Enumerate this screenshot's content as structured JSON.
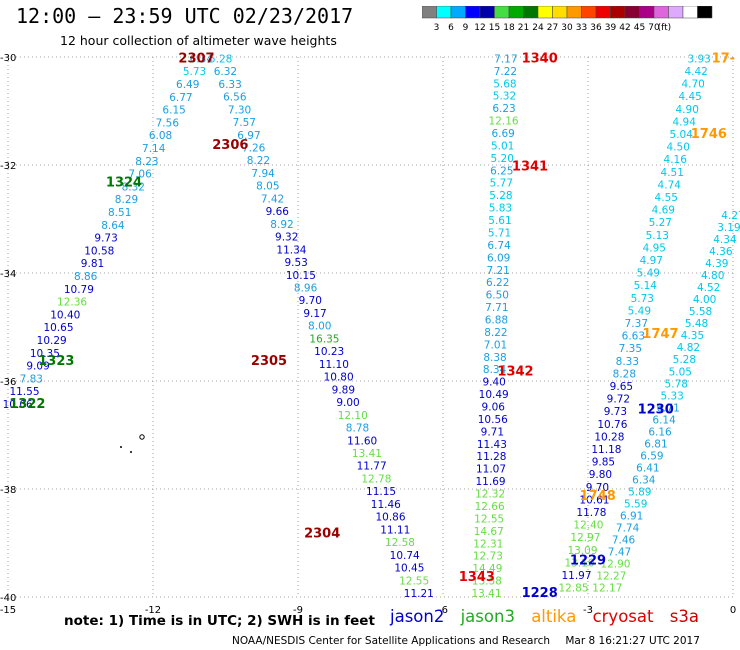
{
  "title": "12:00 – 23:59 UTC 02/23/2017",
  "subtitle": "12 hour collection of altimeter wave heights",
  "colorbar": {
    "colors": [
      "#808080",
      "#00ffff",
      "#00aaff",
      "#0000ff",
      "#0000aa",
      "#44dd44",
      "#00aa00",
      "#007700",
      "#ffff00",
      "#ffdd00",
      "#ff9900",
      "#ff4400",
      "#ee0000",
      "#aa0000",
      "#880033",
      "#aa0088",
      "#dd66dd",
      "#ddaaff",
      "#ffffff",
      "#000000"
    ],
    "labels": [
      "3",
      "6",
      "9",
      "12",
      "15",
      "18",
      "21",
      "24",
      "27",
      "30",
      "33",
      "36",
      "39",
      "42",
      "45",
      "70",
      "(ft)"
    ]
  },
  "axes": {
    "x_ticks": [
      "-15",
      "-12",
      "-9",
      "-6",
      "-3",
      "0"
    ],
    "y_ticks": [
      "-30",
      "-32",
      "-34",
      "-36",
      "-38",
      "-40"
    ]
  },
  "note": "note: 1) Time is in UTC; 2) SWH is in feet",
  "legend": [
    {
      "name": "jason2",
      "color": "#0000cc"
    },
    {
      "name": "jason3",
      "color": "#22aa22"
    },
    {
      "name": "altika",
      "color": "#ff9900"
    },
    {
      "name": "cryosat",
      "color": "#dd0000"
    },
    {
      "name": "s3a",
      "color": "#cc0000"
    }
  ],
  "footer": {
    "credit": "NOAA/NESDIS Center for Satellite Applications and Research",
    "timestamp": "Mar  8 16:21:27 UTC 2017"
  },
  "pass_labels": [
    {
      "text": "2307",
      "lon": -11.1,
      "lat": -30.1,
      "color": "#990000"
    },
    {
      "text": "2306",
      "lon": -10.4,
      "lat": -31.7,
      "color": "#990000"
    },
    {
      "text": "1324",
      "lon": -12.6,
      "lat": -32.4,
      "color": "#007700"
    },
    {
      "text": "2305",
      "lon": -9.6,
      "lat": -35.7,
      "color": "#990000"
    },
    {
      "text": "1323",
      "lon": -14.0,
      "lat": -35.7,
      "color": "#007700"
    },
    {
      "text": "1322",
      "lon": -14.6,
      "lat": -36.5,
      "color": "#007700"
    },
    {
      "text": "2304",
      "lon": -8.5,
      "lat": -38.9,
      "color": "#990000"
    },
    {
      "text": "1340",
      "lon": -4.0,
      "lat": -30.1,
      "color": "#dd0000"
    },
    {
      "text": "1341",
      "lon": -4.2,
      "lat": -32.1,
      "color": "#dd0000"
    },
    {
      "text": "1342",
      "lon": -4.5,
      "lat": -35.9,
      "color": "#dd0000"
    },
    {
      "text": "1343",
      "lon": -5.3,
      "lat": -39.7,
      "color": "#dd0000"
    },
    {
      "text": "1746",
      "lon": -0.5,
      "lat": -31.5,
      "color": "#ff9900"
    },
    {
      "text": "1747",
      "lon": -1.5,
      "lat": -35.2,
      "color": "#ff9900"
    },
    {
      "text": "1748",
      "lon": -2.8,
      "lat": -38.2,
      "color": "#ff9900"
    },
    {
      "text": "1230",
      "lon": -1.6,
      "lat": -36.6,
      "color": "#0000cc"
    },
    {
      "text": "1229",
      "lon": -3.0,
      "lat": -39.4,
      "color": "#0000cc"
    },
    {
      "text": "1228",
      "lon": -4.0,
      "lat": -40.0,
      "color": "#0000cc"
    },
    {
      "text": "17-",
      "lon": -0.2,
      "lat": -30.1,
      "color": "#ff9900"
    }
  ],
  "tracks": [
    {
      "name": "pass-2307",
      "start": [
        -10.6,
        -30.1
      ],
      "end": [
        -6.5,
        -40.0
      ],
      "values": [
        "5.28",
        "6.32",
        "6.33",
        "6.56",
        "7.30",
        "7.57",
        "6.97",
        "7.26",
        "8.22",
        "7.94",
        "8.05",
        "7.42",
        "9.66",
        "8.92",
        "9.32",
        "11.34",
        "9.53",
        "10.15",
        "8.96",
        "9.70",
        "9.17",
        "8.00",
        "16.35",
        "10.23",
        "11.10",
        "10.80",
        "9.89",
        "9.00",
        "12.10",
        "8.78",
        "11.60",
        "13.41",
        "11.77",
        "12.78",
        "11.15",
        "11.46",
        "10.86",
        "11.11",
        "12.58",
        "10.74",
        "10.45",
        "12.55",
        "11.21"
      ]
    },
    {
      "name": "pass-1324",
      "start": [
        -11.0,
        -30.1
      ],
      "end": [
        -14.8,
        -36.5
      ],
      "values": [
        "6.34",
        "5.73",
        "6.49",
        "6.77",
        "6.15",
        "7.56",
        "6.08",
        "7.14",
        "8.23",
        "7.06",
        "8.32",
        "8.29",
        "8.51",
        "8.64",
        "9.73",
        "10.58",
        "9.81",
        "8.86",
        "10.79",
        "12.36",
        "10.40",
        "10.65",
        "10.29",
        "10.35",
        "9.09",
        "7.83",
        "11.55",
        "10.06"
      ]
    },
    {
      "name": "pass-1340",
      "start": [
        -4.7,
        -30.1
      ],
      "end": [
        -5.1,
        -40.0
      ],
      "values": [
        "7.17",
        "7.22",
        "5.68",
        "5.32",
        "6.23",
        "12.16",
        "6.69",
        "5.01",
        "5.20",
        "6.25",
        "5.77",
        "5.28",
        "5.83",
        "5.61",
        "5.71",
        "6.74",
        "6.09",
        "7.21",
        "6.22",
        "6.50",
        "7.71",
        "6.88",
        "8.22",
        "7.01",
        "8.38",
        "8.34",
        "9.40",
        "10.49",
        "9.06",
        "10.56",
        "9.71",
        "11.43",
        "11.28",
        "11.07",
        "11.69",
        "12.32",
        "12.66",
        "12.55",
        "14.67",
        "12.31",
        "12.73",
        "14.49",
        "13.58",
        "13.41"
      ]
    },
    {
      "name": "pass-1746",
      "start": [
        -0.7,
        -30.1
      ],
      "end": [
        -3.3,
        -39.9
      ],
      "values": [
        "3.93",
        "4.42",
        "4.70",
        "4.45",
        "4.90",
        "4.94",
        "5.04",
        "4.50",
        "4.16",
        "4.51",
        "4.74",
        "4.55",
        "4.69",
        "5.27",
        "5.13",
        "4.95",
        "4.97",
        "5.49",
        "5.14",
        "5.73",
        "5.49",
        "7.37",
        "6.63",
        "7.35",
        "8.33",
        "8.28",
        "9.65",
        "9.72",
        "9.73",
        "10.76",
        "10.28",
        "11.18",
        "9.85",
        "9.80",
        "9.70",
        "10.61",
        "11.78",
        "12.40",
        "12.97",
        "13.09",
        "13.10",
        "11.97",
        "12.85"
      ]
    },
    {
      "name": "pass-1747",
      "start": [
        0.0,
        -33.0
      ],
      "end": [
        -2.6,
        -39.9
      ],
      "values": [
        "4.27",
        "3.19",
        "4.34",
        "4.36",
        "4.39",
        "4.80",
        "4.52",
        "4.00",
        "5.58",
        "5.48",
        "4.35",
        "4.82",
        "5.28",
        "5.05",
        "5.78",
        "5.33",
        "6.71",
        "6.14",
        "6.16",
        "6.81",
        "6.59",
        "6.41",
        "6.34",
        "5.89",
        "5.59",
        "6.91",
        "7.74",
        "7.46",
        "7.47",
        "12.90",
        "12.27",
        "12.17"
      ]
    }
  ]
}
